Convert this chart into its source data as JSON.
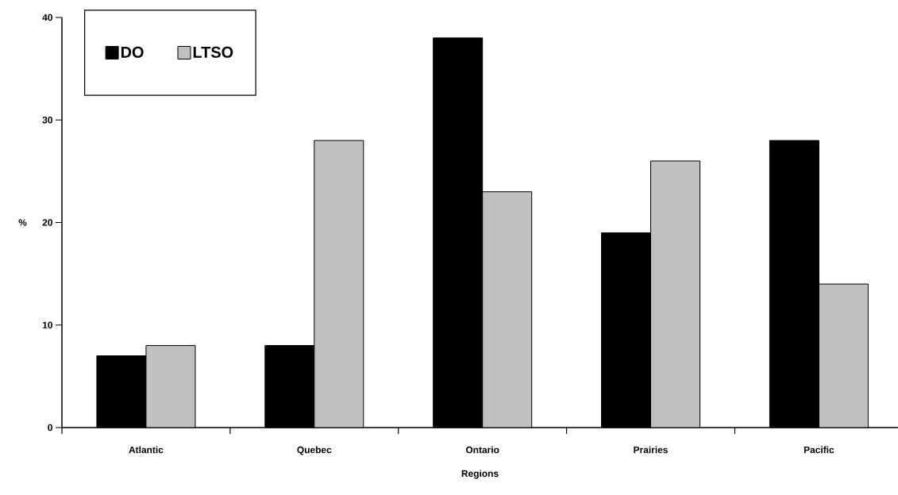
{
  "chart_data": {
    "type": "bar",
    "xlabel": "Regions",
    "ylabel": "%",
    "categories": [
      "Atlantic",
      "Quebec",
      "Ontario",
      "Prairies",
      "Pacific"
    ],
    "series": [
      {
        "name": "DO",
        "color": "#000000",
        "values": [
          7,
          8,
          38,
          19,
          28
        ]
      },
      {
        "name": "LTSO",
        "color": "#c0c0c0",
        "values": [
          8,
          28,
          23,
          26,
          14
        ]
      }
    ],
    "ylim": [
      0,
      40
    ],
    "yticks": [
      0,
      10,
      20,
      30,
      40
    ],
    "legend": "top left"
  }
}
